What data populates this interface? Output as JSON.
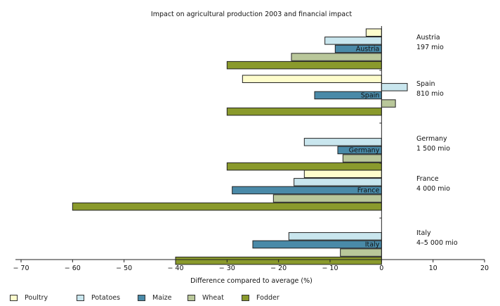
{
  "chart_data": {
    "type": "bar",
    "orientation": "horizontal",
    "title": "Impact on agricultural production 2003 and financial impact",
    "xlabel": "Difference compared to average (%)",
    "xlim": [
      -70,
      20
    ],
    "xticks": [
      -70,
      -60,
      -50,
      -40,
      -30,
      -20,
      -10,
      0,
      10,
      20
    ],
    "xtick_labels": [
      "− 70",
      "− 60",
      "− 50",
      "− 40",
      "− 30",
      "− 20",
      "− 10",
      "0",
      "10",
      "20"
    ],
    "grid": false,
    "legend_position": "bottom",
    "series": [
      {
        "name": "Poultry",
        "color": "#fefdcc"
      },
      {
        "name": "Potatoes",
        "color": "#c9e6ee"
      },
      {
        "name": "Maize",
        "color": "#4a8aa8"
      },
      {
        "name": "Wheat",
        "color": "#b9c79a"
      },
      {
        "name": "Fodder",
        "color": "#8a9a2c"
      }
    ],
    "groups": [
      {
        "country": "Austria",
        "impact_label": "197 mio",
        "values": {
          "Poultry": -3,
          "Potatoes": -11,
          "Maize": -9,
          "Wheat": -17.5,
          "Fodder": -30
        }
      },
      {
        "country": "Spain",
        "impact_label": "810 mio",
        "values": {
          "Poultry": -27,
          "Potatoes": 5,
          "Maize": -13,
          "Wheat": 2.7,
          "Fodder": -30
        }
      },
      {
        "country": "Germany",
        "impact_label": "1 500 mio",
        "values": {
          "Poultry": null,
          "Potatoes": -15,
          "Maize": -8.5,
          "Wheat": -7.5,
          "Fodder": -30
        }
      },
      {
        "country": "France",
        "impact_label": "4 000 mio",
        "values": {
          "Poultry": -15,
          "Potatoes": -17,
          "Maize": -29,
          "Wheat": -21,
          "Fodder": -60
        }
      },
      {
        "country": "Italy",
        "impact_label": "4–5 000 mio",
        "values": {
          "Poultry": null,
          "Potatoes": -18,
          "Maize": -25,
          "Wheat": -8,
          "Fodder": -40
        }
      }
    ]
  }
}
